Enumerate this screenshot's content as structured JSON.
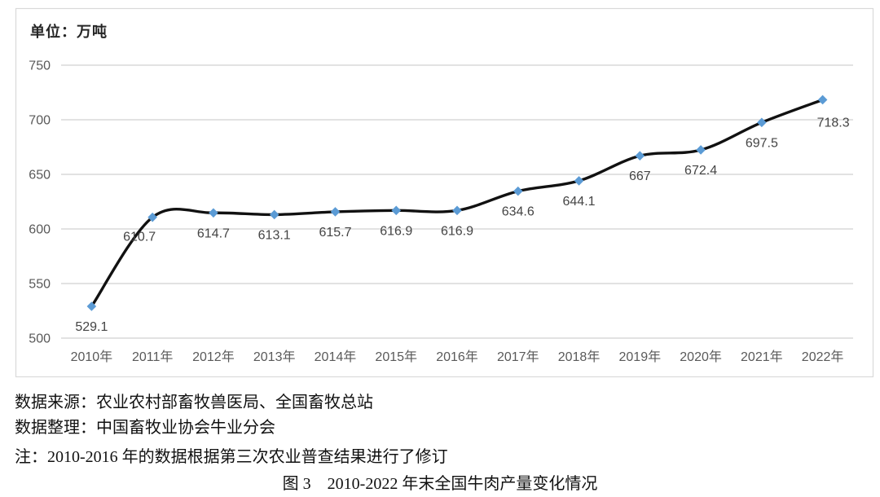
{
  "theme": {
    "marker_color": "#5B9BD5",
    "line_color": "#111111",
    "grid_color": "#D9D9D9",
    "border_color": "#D9D9D9",
    "tick_color": "#595959",
    "data_label_color": "#444444",
    "background": "#FFFFFF"
  },
  "chart_data": {
    "type": "line",
    "smooth": true,
    "marker": "diamond",
    "unit": "单位：万吨",
    "title": "图 3 2010-2022 年末全国牛肉产量变化情况",
    "categories": [
      "2010年",
      "2011年",
      "2012年",
      "2013年",
      "2014年",
      "2015年",
      "2016年",
      "2017年",
      "2018年",
      "2019年",
      "2020年",
      "2021年",
      "2022年"
    ],
    "values": [
      529.1,
      610.7,
      614.7,
      613.1,
      615.7,
      616.9,
      616.9,
      634.6,
      644.1,
      667,
      672.4,
      697.5,
      718.3
    ],
    "point_labels": [
      "529.1",
      "610.7",
      "614.7",
      "613.1",
      "615.7",
      "616.9",
      "616.9",
      "634.6",
      "644.1",
      "667",
      "672.4",
      "697.5",
      "718.3"
    ],
    "ylim": [
      500,
      750
    ],
    "yticks": [
      500,
      550,
      600,
      650,
      700,
      750
    ],
    "xlabel": "",
    "ylabel": "",
    "grid": true,
    "legend": "none"
  },
  "footer": {
    "source": "数据来源：农业农村部畜牧兽医局、全国畜牧总站",
    "compiler": "数据整理：中国畜牧业协会牛业分会",
    "note": "注：2010-2016 年的数据根据第三次农业普查结果进行了修订",
    "caption_fig": "图 3",
    "caption_title": "2010-2022 年末全国牛肉产量变化情况"
  }
}
